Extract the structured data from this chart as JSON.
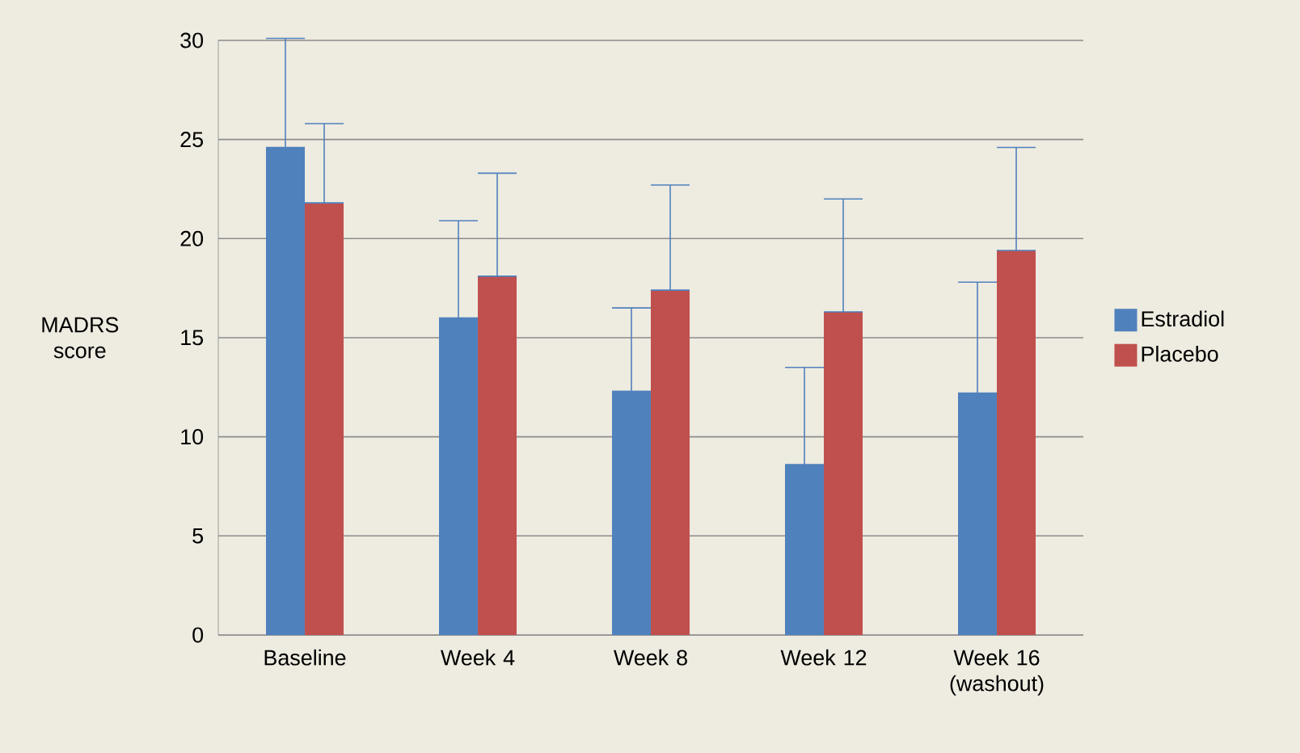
{
  "chart_data": {
    "type": "bar",
    "ylabel": "MADRS score",
    "categories": [
      "Baseline",
      "Week 4",
      "Week 8",
      "Week 12",
      "Week 16 (washout)"
    ],
    "series": [
      {
        "name": "Estradiol",
        "color": "#4f81bd",
        "values": [
          24.6,
          16.0,
          12.3,
          8.6,
          12.2
        ],
        "errors": [
          [
            24.6,
            30.1
          ],
          [
            16.0,
            20.9
          ],
          [
            12.3,
            16.5
          ],
          [
            8.6,
            13.5
          ],
          [
            12.2,
            17.8
          ]
        ]
      },
      {
        "name": "Placebo",
        "color": "#c0504d",
        "values": [
          21.8,
          18.1,
          17.4,
          16.3,
          19.4
        ],
        "errors": [
          [
            21.8,
            25.8
          ],
          [
            18.1,
            23.3
          ],
          [
            17.4,
            22.7
          ],
          [
            16.3,
            22.0
          ],
          [
            19.4,
            24.6
          ]
        ]
      }
    ],
    "ylim": [
      0,
      30
    ],
    "yticks": [
      0,
      5,
      10,
      15,
      20,
      25,
      30
    ],
    "grid": "y",
    "legend": "right"
  }
}
